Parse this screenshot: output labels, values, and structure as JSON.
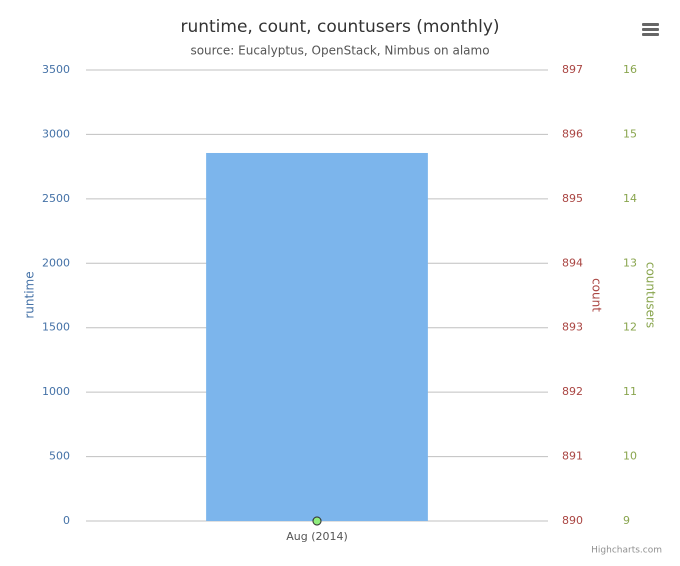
{
  "chart_data": {
    "type": "bar",
    "title": "runtime, count, countusers (monthly)",
    "subtitle": "source: Eucalyptus, OpenStack, Nimbus on alamo",
    "categories": [
      "Aug (2014)"
    ],
    "series": [
      {
        "name": "runtime",
        "type": "bar",
        "color": "#7cb5ec",
        "values": [
          2856
        ]
      },
      {
        "name": "count",
        "type": "line",
        "color": "#aa4643",
        "values": [
          890
        ],
        "axis": "y2"
      },
      {
        "name": "countusers",
        "type": "line",
        "color": "#90ed7d",
        "values": [
          9
        ],
        "axis": "y3"
      }
    ],
    "ylim": [
      0,
      3500
    ],
    "yticks": [
      0,
      500,
      1000,
      1500,
      2000,
      2500,
      3000,
      3500
    ],
    "y2lim": [
      890,
      897
    ],
    "y2ticks": [
      890,
      891,
      892,
      893,
      894,
      895,
      896,
      897
    ],
    "y3lim": [
      9,
      16
    ],
    "y3ticks": [
      9,
      10,
      11,
      12,
      13,
      14,
      15,
      16
    ],
    "grid": true,
    "credits": "Highcharts.com"
  }
}
